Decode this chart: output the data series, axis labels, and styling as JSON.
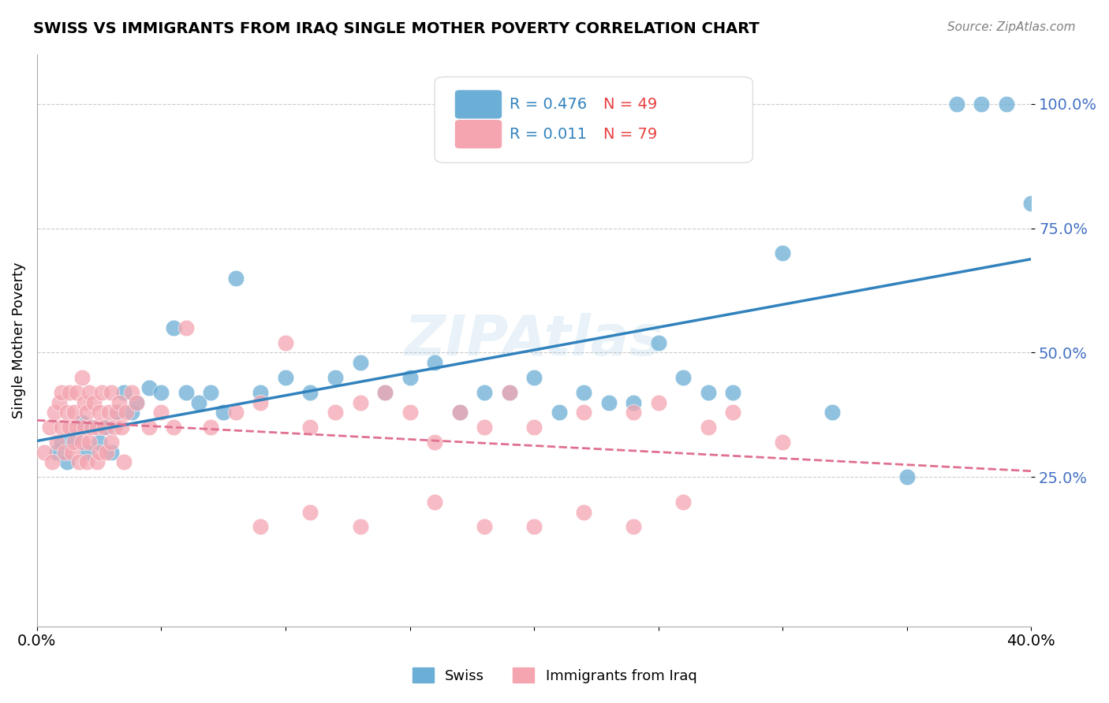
{
  "title": "SWISS VS IMMIGRANTS FROM IRAQ SINGLE MOTHER POVERTY CORRELATION CHART",
  "source": "Source: ZipAtlas.com",
  "ylabel": "Single Mother Poverty",
  "xlim": [
    0.0,
    0.4
  ],
  "ylim": [
    -0.05,
    1.1
  ],
  "xticks": [
    0.0,
    0.05,
    0.1,
    0.15,
    0.2,
    0.25,
    0.3,
    0.35,
    0.4
  ],
  "xtick_labels": [
    "0.0%",
    "",
    "",
    "",
    "",
    "",
    "",
    "",
    "40.0%"
  ],
  "ytick_positions": [
    0.25,
    0.5,
    0.75,
    1.0
  ],
  "ytick_labels": [
    "25.0%",
    "50.0%",
    "75.0%",
    "100.0%"
  ],
  "swiss_color": "#6baed6",
  "iraq_color": "#f4a5b0",
  "swiss_line_color": "#3182bd",
  "iraq_line_color": "#e07090",
  "swiss_R": 0.476,
  "swiss_N": 49,
  "iraq_R": 0.011,
  "iraq_N": 79,
  "legend_color": "#3182bd",
  "legend_N_color": "#e84040",
  "watermark": "ZIPAtlas",
  "watermark_color": "#6baed6",
  "background_color": "#ffffff",
  "grid_color": "#cccccc",
  "swiss_x": [
    0.008,
    0.01,
    0.012,
    0.015,
    0.018,
    0.02,
    0.022,
    0.025,
    0.028,
    0.03,
    0.032,
    0.035,
    0.038,
    0.04,
    0.045,
    0.05,
    0.055,
    0.06,
    0.065,
    0.07,
    0.075,
    0.08,
    0.09,
    0.1,
    0.11,
    0.12,
    0.13,
    0.14,
    0.15,
    0.16,
    0.17,
    0.18,
    0.19,
    0.2,
    0.21,
    0.22,
    0.23,
    0.24,
    0.25,
    0.26,
    0.27,
    0.28,
    0.3,
    0.32,
    0.35,
    0.37,
    0.38,
    0.39,
    0.4
  ],
  "swiss_y": [
    0.3,
    0.32,
    0.28,
    0.33,
    0.36,
    0.3,
    0.35,
    0.32,
    0.35,
    0.3,
    0.38,
    0.42,
    0.38,
    0.4,
    0.43,
    0.42,
    0.55,
    0.42,
    0.4,
    0.42,
    0.38,
    0.65,
    0.42,
    0.45,
    0.42,
    0.45,
    0.48,
    0.42,
    0.45,
    0.48,
    0.38,
    0.42,
    0.42,
    0.45,
    0.38,
    0.42,
    0.4,
    0.4,
    0.52,
    0.45,
    0.42,
    0.42,
    0.7,
    0.38,
    0.25,
    1.0,
    1.0,
    1.0,
    0.8
  ],
  "iraq_x": [
    0.003,
    0.005,
    0.006,
    0.007,
    0.008,
    0.009,
    0.01,
    0.01,
    0.011,
    0.012,
    0.013,
    0.013,
    0.014,
    0.015,
    0.015,
    0.016,
    0.016,
    0.017,
    0.018,
    0.018,
    0.019,
    0.019,
    0.02,
    0.02,
    0.021,
    0.021,
    0.022,
    0.023,
    0.024,
    0.024,
    0.025,
    0.025,
    0.026,
    0.027,
    0.028,
    0.029,
    0.03,
    0.03,
    0.031,
    0.032,
    0.033,
    0.034,
    0.035,
    0.036,
    0.038,
    0.04,
    0.045,
    0.05,
    0.055,
    0.06,
    0.07,
    0.08,
    0.09,
    0.1,
    0.11,
    0.12,
    0.13,
    0.14,
    0.15,
    0.16,
    0.17,
    0.18,
    0.19,
    0.2,
    0.22,
    0.24,
    0.25,
    0.27,
    0.28,
    0.3,
    0.09,
    0.11,
    0.13,
    0.16,
    0.18,
    0.2,
    0.22,
    0.24,
    0.26
  ],
  "iraq_y": [
    0.3,
    0.35,
    0.28,
    0.38,
    0.32,
    0.4,
    0.35,
    0.42,
    0.3,
    0.38,
    0.42,
    0.35,
    0.3,
    0.32,
    0.38,
    0.42,
    0.35,
    0.28,
    0.32,
    0.45,
    0.35,
    0.4,
    0.28,
    0.38,
    0.32,
    0.42,
    0.35,
    0.4,
    0.28,
    0.35,
    0.38,
    0.3,
    0.42,
    0.35,
    0.3,
    0.38,
    0.32,
    0.42,
    0.35,
    0.38,
    0.4,
    0.35,
    0.28,
    0.38,
    0.42,
    0.4,
    0.35,
    0.38,
    0.35,
    0.55,
    0.35,
    0.38,
    0.4,
    0.52,
    0.35,
    0.38,
    0.4,
    0.42,
    0.38,
    0.32,
    0.38,
    0.35,
    0.42,
    0.35,
    0.38,
    0.38,
    0.4,
    0.35,
    0.38,
    0.32,
    0.15,
    0.18,
    0.15,
    0.2,
    0.15,
    0.15,
    0.18,
    0.15,
    0.2
  ]
}
